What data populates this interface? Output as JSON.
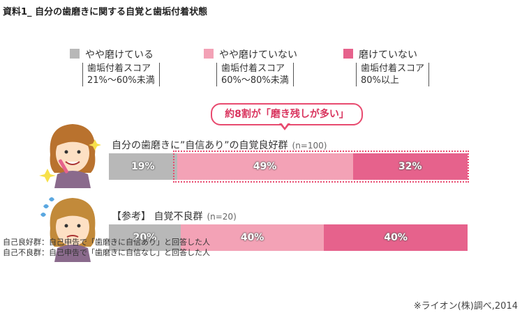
{
  "title": "資料1_ 自分の歯磨きに関する自覚と歯垢付着状態",
  "legend": [
    {
      "name": "やや磨けている",
      "sub1": "歯垢付着スコア",
      "sub2": "21%〜60%未満",
      "color": "#b8b8b8"
    },
    {
      "name": "やや磨けていない",
      "sub1": "歯垢付着スコア",
      "sub2": "60%〜80%未満",
      "color": "#f3a2b6"
    },
    {
      "name": "磨けていない",
      "sub1": "歯垢付着スコア",
      "sub2": "80%以上",
      "color": "#e6628c"
    }
  ],
  "callout": {
    "prefix": "約8割が",
    "quote": "「磨き残しが多い」"
  },
  "notes": [
    "自己良好群：自己申告で「歯磨きに自信あり」と回答した人",
    "自己不良群：自己申告で「歯磨きに自信なし」と回答した人"
  ],
  "source": "※ライオン(株)調べ,2014",
  "chart_data": {
    "type": "bar",
    "orientation": "horizontal",
    "stacked": true,
    "percent_stacked": true,
    "legend_position": "top",
    "categories": [
      "自分の歯磨きに”自信あり”の自覚良好群",
      "【参考】 自覚不良群"
    ],
    "category_notes": [
      "(n=100)",
      "(n=20)"
    ],
    "series": [
      {
        "name": "やや磨けている",
        "values": [
          19,
          20
        ],
        "color": "#b8b8b8"
      },
      {
        "name": "やや磨けていない",
        "values": [
          49,
          40
        ],
        "color": "#f3a2b6"
      },
      {
        "name": "磨けていない",
        "values": [
          32,
          40
        ],
        "color": "#e6628c"
      }
    ],
    "value_suffix": "%",
    "xlim": [
      0,
      100
    ]
  }
}
